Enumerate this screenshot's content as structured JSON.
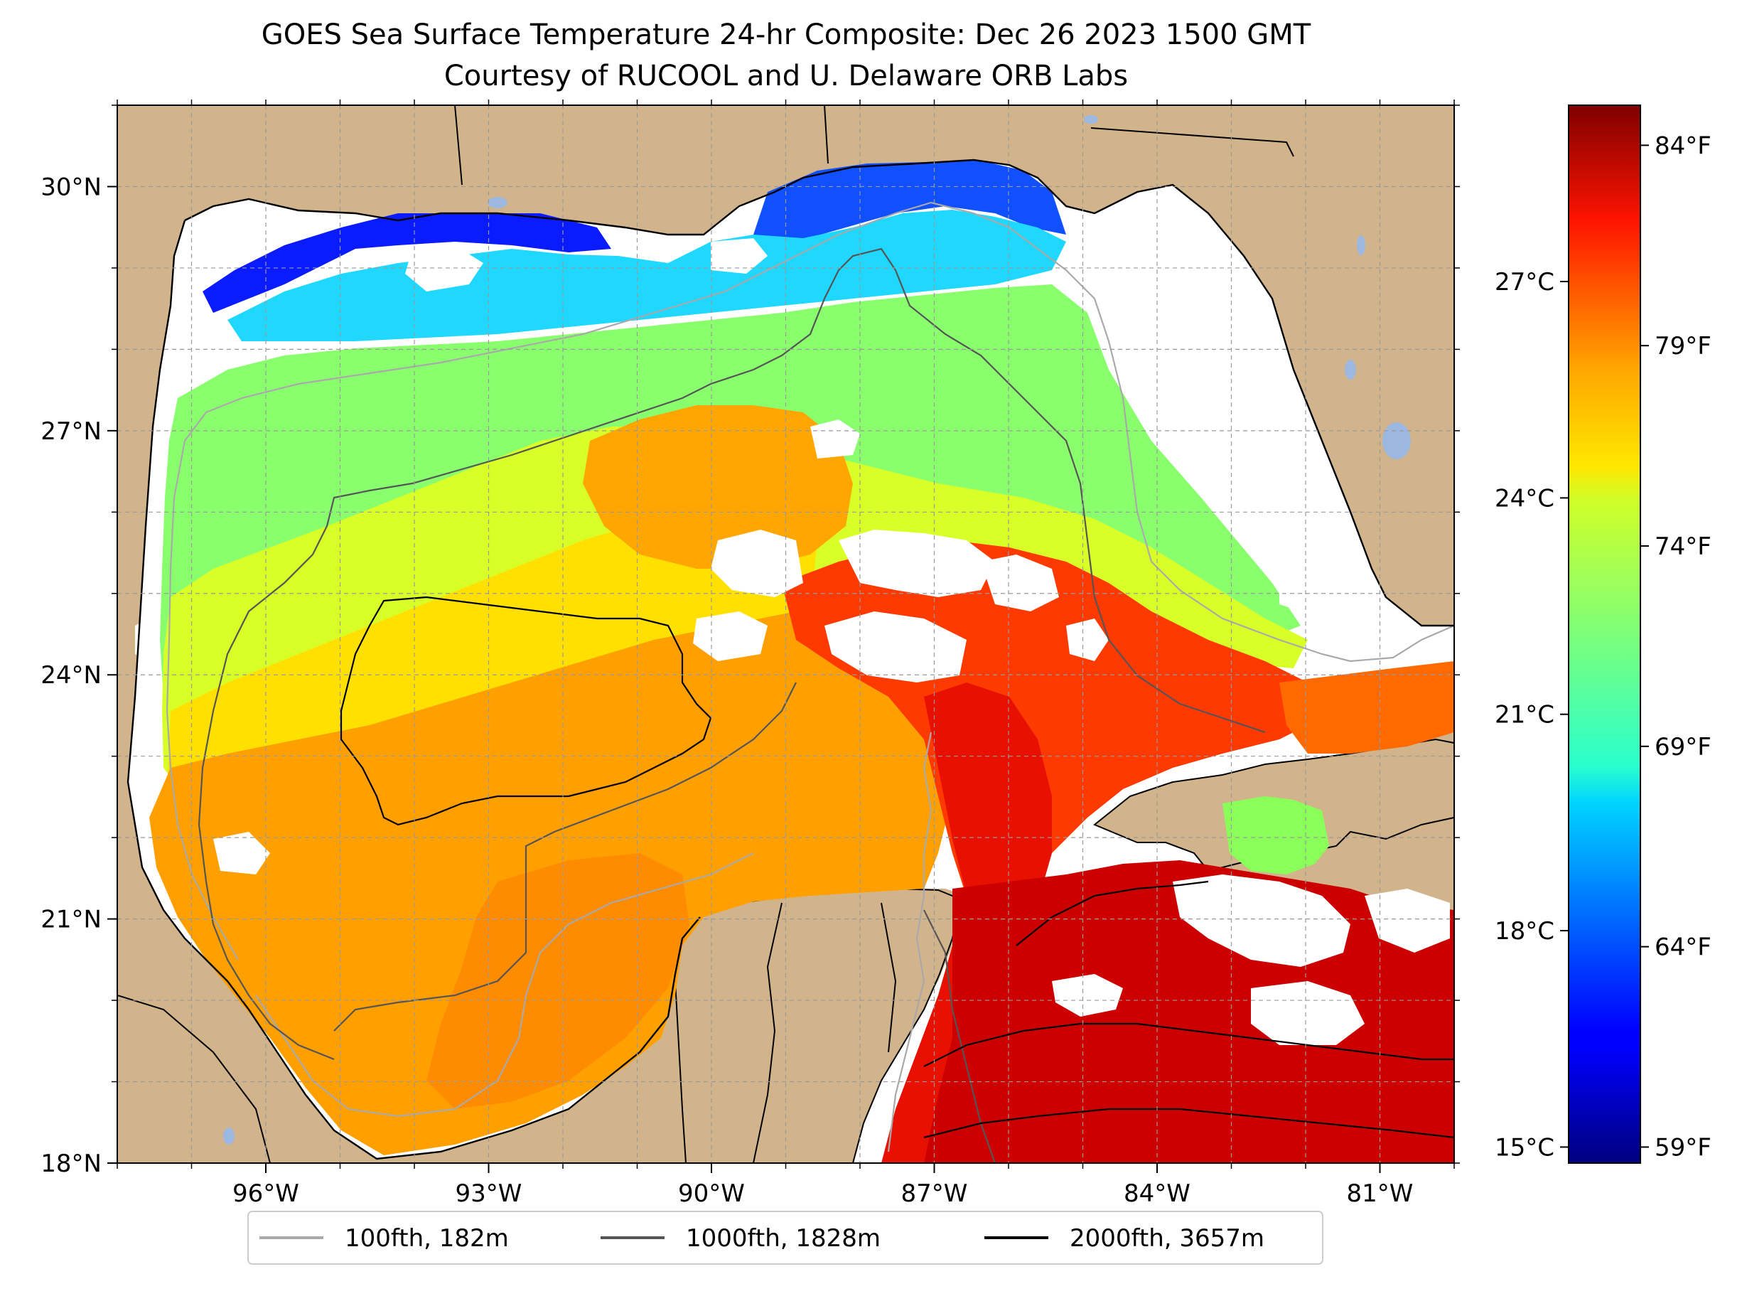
{
  "title": {
    "line1": "GOES Sea Surface Temperature 24-hr Composite: Dec 26 2023 1500 GMT",
    "line2": "Courtesy of RUCOOL and U. Delaware ORB Labs"
  },
  "map": {
    "lon_range": [
      -98,
      -80
    ],
    "lat_range": [
      18,
      31
    ],
    "lon_ticks": [
      {
        "value": -96,
        "label": "96°W"
      },
      {
        "value": -93,
        "label": "93°W"
      },
      {
        "value": -90,
        "label": "90°W"
      },
      {
        "value": -87,
        "label": "87°W"
      },
      {
        "value": -84,
        "label": "84°W"
      },
      {
        "value": -81,
        "label": "81°W"
      }
    ],
    "lat_ticks": [
      {
        "value": 30,
        "label": "30°N"
      },
      {
        "value": 27,
        "label": "27°N"
      },
      {
        "value": 24,
        "label": "24°N"
      },
      {
        "value": 21,
        "label": "21°N"
      },
      {
        "value": 18,
        "label": "18°N"
      }
    ],
    "gridlines": true,
    "colors": {
      "land": "#d2b48c",
      "ocean_no_data": "#ffffff",
      "lakes": "#9db8e0",
      "coast": "#000000"
    }
  },
  "colorbar": {
    "colormap": "jet",
    "range_f": [
      58.6,
      85
    ],
    "fahrenheit_ticks": [
      {
        "value": 59,
        "label": "59°F"
      },
      {
        "value": 64,
        "label": "64°F"
      },
      {
        "value": 69,
        "label": "69°F"
      },
      {
        "value": 74,
        "label": "74°F"
      },
      {
        "value": 79,
        "label": "79°F"
      },
      {
        "value": 84,
        "label": "84°F"
      }
    ],
    "celsius_ticks": [
      {
        "value": 15,
        "label": "15°C"
      },
      {
        "value": 18,
        "label": "18°C"
      },
      {
        "value": 21,
        "label": "21°C"
      },
      {
        "value": 24,
        "label": "24°C"
      },
      {
        "value": 27,
        "label": "27°C"
      }
    ]
  },
  "legend": {
    "placement": "bottom-center",
    "items": [
      {
        "label": "100fth, 182m",
        "color": "#a9a9a9"
      },
      {
        "label": "1000fth, 1828m",
        "color": "#555555"
      },
      {
        "label": "2000fth, 3657m",
        "color": "#000000"
      }
    ]
  }
}
